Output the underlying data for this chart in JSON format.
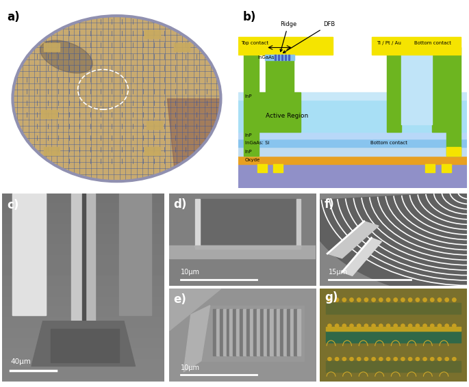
{
  "panel_labels": [
    "a)",
    "b)",
    "c)",
    "d)",
    "e)",
    "f)",
    "g)"
  ],
  "panel_label_fontsize": 12,
  "panel_label_fontweight": "bold",
  "fig_bg": "#ffffff",
  "diagram_b": {
    "yellow": "#F5E400",
    "green": "#6DB520",
    "light_blue_active": "#A8DFF5",
    "light_blue_bottom": "#C0E0F8",
    "purple_substrate": "#8888BB",
    "orange_oxyde": "#E8A020",
    "ingaas_blue": "#88C8F0",
    "white": "#FFFFFF",
    "grating_color": "#5878C0",
    "text_color": "#000000",
    "ridge_label": "Ridge",
    "dfb_label": "DFB",
    "top_contact_label": "Top contact",
    "ti_pt_au_label": "Ti / Pt / Au",
    "bottom_contact_label": "Bottom contact",
    "ingaas_label": "InGaAs",
    "inp_label1": "InP",
    "active_region_label": "Active Region",
    "inp_label2": "InP",
    "ingaas_si_label": "InGaAs: Si",
    "bottom_contact_label2": "Bottom contact",
    "inp_label3": "InP",
    "oxyde_label": "Oxyde"
  },
  "scale_bars": {
    "c": "40μm",
    "d": "10μm",
    "e": "10μm",
    "f": "15μm"
  },
  "wafer": {
    "bg_color": "#C8B898",
    "rim_color": "#9090B0",
    "grid_color": "#3050A0",
    "chip_color": "#C8AA70",
    "dark_patch": "#A07060",
    "dashed_circle_color": "white"
  }
}
